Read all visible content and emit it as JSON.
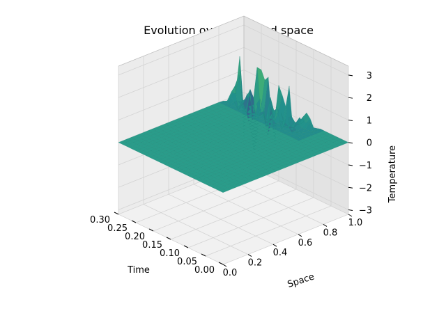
{
  "chart_data": {
    "type": "surface",
    "title": "Evolution over time and space",
    "xlabel": "Time",
    "ylabel": "Space",
    "zlabel": "Temperature",
    "xlim": [
      0.0,
      0.3
    ],
    "ylim": [
      0.0,
      1.0
    ],
    "zlim": [
      -3.2,
      3.4
    ],
    "x_ticks": [
      "0.00",
      "0.05",
      "0.10",
      "0.15",
      "0.20",
      "0.25",
      "0.30"
    ],
    "y_ticks": [
      "0.0",
      "0.2",
      "0.4",
      "0.6",
      "0.8",
      "1.0"
    ],
    "z_ticks": [
      "−3",
      "−2",
      "−1",
      "0",
      "1",
      "2",
      "3"
    ],
    "colormap": "viridis",
    "grid": true,
    "surface_description": {
      "baseline_value": 0.0,
      "instability_region": "near Space = 1.0 and late Time, amplitudes up to about ±3"
    }
  },
  "colors": {
    "pane_back": "#ececec",
    "pane_side": "#e3e3e3",
    "pane_floor": "#f1f1f1",
    "surface_base": "#2a9c8a"
  }
}
